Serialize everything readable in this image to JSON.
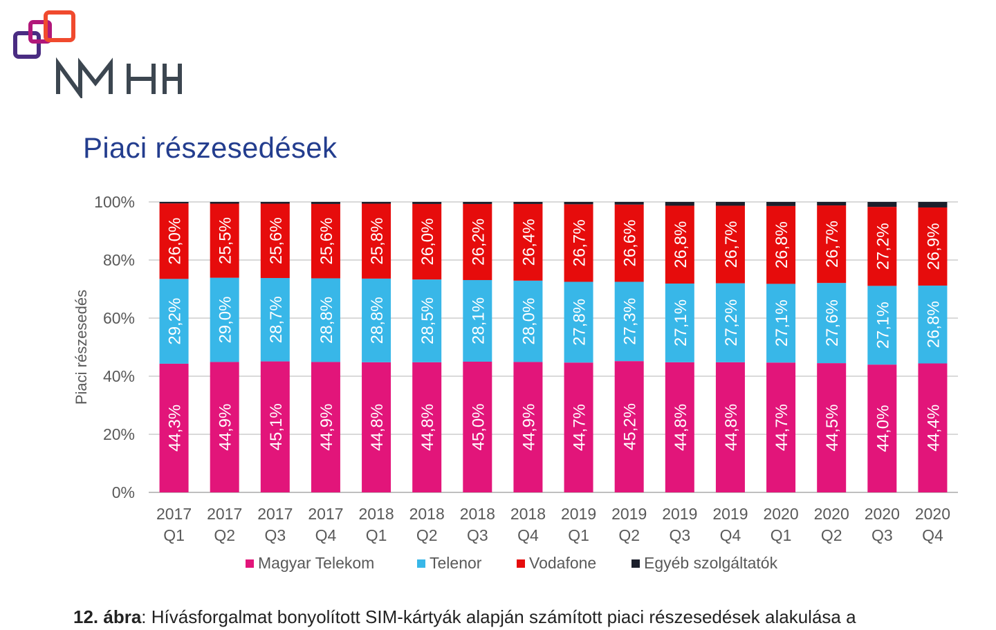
{
  "logo": {
    "text": "NMHH"
  },
  "heading": "Piaci részesedések",
  "caption": {
    "label": "12. ábra",
    "text": ": Hívásforgalmat bonyolított SIM-kártyák alapján számított piaci részesedések alakulása a"
  },
  "colors": {
    "Magyar Telekom": "#e2157a",
    "Telenor": "#38b7e8",
    "Vodafone": "#e60c0c",
    "Egyéb szolgáltatók": "#1b1f2b"
  },
  "chart_data": {
    "type": "bar",
    "stacked": true,
    "percent": true,
    "ylabel": "Piaci részesedés",
    "ylim": [
      0,
      100
    ],
    "yticks": [
      "0%",
      "20%",
      "40%",
      "60%",
      "80%",
      "100%"
    ],
    "grid": true,
    "legend": "bottom",
    "categories": [
      [
        "2017",
        "Q1"
      ],
      [
        "2017",
        "Q2"
      ],
      [
        "2017",
        "Q3"
      ],
      [
        "2017",
        "Q4"
      ],
      [
        "2018",
        "Q1"
      ],
      [
        "2018",
        "Q2"
      ],
      [
        "2018",
        "Q3"
      ],
      [
        "2018",
        "Q4"
      ],
      [
        "2019",
        "Q1"
      ],
      [
        "2019",
        "Q2"
      ],
      [
        "2019",
        "Q3"
      ],
      [
        "2019",
        "Q4"
      ],
      [
        "2020",
        "Q1"
      ],
      [
        "2020",
        "Q2"
      ],
      [
        "2020",
        "Q3"
      ],
      [
        "2020",
        "Q4"
      ]
    ],
    "series": [
      {
        "name": "Magyar Telekom",
        "values": [
          44.3,
          44.9,
          45.1,
          44.9,
          44.8,
          44.8,
          45.0,
          44.9,
          44.7,
          45.2,
          44.8,
          44.8,
          44.7,
          44.5,
          44.0,
          44.4
        ],
        "labels": [
          "44,3%",
          "44,9%",
          "45,1%",
          "44,9%",
          "44,8%",
          "44,8%",
          "45,0%",
          "44,9%",
          "44,7%",
          "45,2%",
          "44,8%",
          "44,8%",
          "44,7%",
          "44,5%",
          "44,0%",
          "44,4%"
        ]
      },
      {
        "name": "Telenor",
        "values": [
          29.2,
          29.0,
          28.7,
          28.8,
          28.8,
          28.5,
          28.1,
          28.0,
          27.8,
          27.3,
          27.1,
          27.2,
          27.1,
          27.6,
          27.1,
          26.8
        ],
        "labels": [
          "29,2%",
          "29,0%",
          "28,7%",
          "28,8%",
          "28,8%",
          "28,5%",
          "28,1%",
          "28,0%",
          "27,8%",
          "27,3%",
          "27,1%",
          "27,2%",
          "27,1%",
          "27,6%",
          "27,1%",
          "26,8%"
        ]
      },
      {
        "name": "Vodafone",
        "values": [
          26.0,
          25.5,
          25.6,
          25.6,
          25.8,
          26.0,
          26.2,
          26.4,
          26.7,
          26.6,
          26.8,
          26.7,
          26.8,
          26.7,
          27.2,
          26.9
        ],
        "labels": [
          "26,0%",
          "25,5%",
          "25,6%",
          "25,6%",
          "25,8%",
          "26,0%",
          "26,2%",
          "26,4%",
          "26,7%",
          "26,6%",
          "26,8%",
          "26,7%",
          "26,8%",
          "26,7%",
          "27,2%",
          "26,9%"
        ]
      },
      {
        "name": "Egyéb szolgáltatók",
        "values": [
          0.5,
          0.6,
          0.6,
          0.7,
          0.6,
          0.7,
          0.7,
          0.7,
          0.8,
          0.9,
          1.3,
          1.3,
          1.4,
          1.2,
          1.7,
          1.9
        ]
      }
    ]
  }
}
